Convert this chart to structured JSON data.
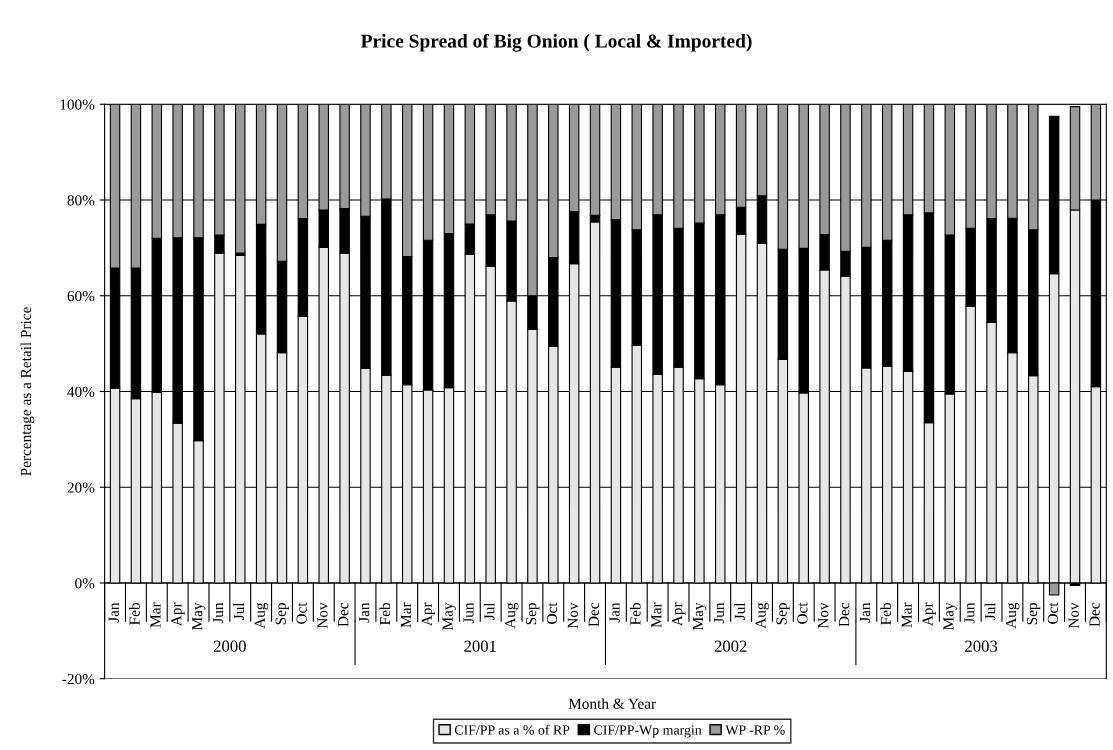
{
  "chart_data": {
    "type": "bar",
    "stacked": true,
    "title": "Price Spread of Big Onion ( Local & Imported)",
    "xlabel": "Month & Year",
    "ylabel": "Percentage as a Retail Price",
    "categories": [
      "Jan",
      "Feb",
      "Mar",
      "Apr",
      "May",
      "Jun",
      "Jul",
      "Aug",
      "Sep",
      "Oct",
      "Nov",
      "Dec",
      "Jan",
      "Feb",
      "Mar",
      "Apr",
      "May",
      "Jun",
      "Jul",
      "Aug",
      "Sep",
      "Oct",
      "Nov",
      "Dec",
      "Jan",
      "Feb",
      "Mar",
      "Apr",
      "May",
      "Jun",
      "Jul",
      "Aug",
      "Sep",
      "Oct",
      "Nov",
      "Dec",
      "Jan",
      "Feb",
      "Mar",
      "Apr",
      "May",
      "Jun",
      "Jul",
      "Aug",
      "Sep",
      "Oct",
      "Nov",
      "Dec"
    ],
    "series": [
      {
        "name": "CIF/PP as a % of RP",
        "color": "#e6e6e6",
        "values": [
          40.7,
          38.5,
          39.8,
          33.4,
          29.7,
          68.9,
          68.4,
          52.0,
          48.1,
          55.7,
          70.1,
          68.9,
          44.8,
          43.4,
          41.4,
          40.3,
          40.8,
          68.7,
          66.1,
          58.9,
          53.0,
          49.4,
          66.7,
          75.4,
          45.1,
          49.6,
          43.6,
          45.1,
          42.7,
          41.4,
          72.8,
          70.9,
          46.7,
          39.7,
          65.4,
          64.1,
          44.9,
          45.3,
          44.2,
          33.5,
          39.5,
          57.8,
          54.4,
          48.1,
          43.3,
          64.6,
          77.9,
          41.0
        ]
      },
      {
        "name": "CIF/PP-Wp margin",
        "color": "#000000",
        "values": [
          25.1,
          27.3,
          32.2,
          38.7,
          42.4,
          3.8,
          0.5,
          22.9,
          19.1,
          20.4,
          7.8,
          9.3,
          31.8,
          36.8,
          26.8,
          31.3,
          32.2,
          6.3,
          10.8,
          16.7,
          7.0,
          18.6,
          10.9,
          1.4,
          30.8,
          24.2,
          33.3,
          29.0,
          32.5,
          35.5,
          5.7,
          10.0,
          23.0,
          30.2,
          7.4,
          5.2,
          25.2,
          26.3,
          32.7,
          43.8,
          33.2,
          16.3,
          21.7,
          28.1,
          30.5,
          32.9,
          -0.5,
          39.0
        ]
      },
      {
        "name": "WP -RP %",
        "color": "#9a9a9a",
        "values": [
          34.2,
          34.2,
          28.0,
          27.9,
          27.9,
          27.3,
          31.1,
          25.1,
          32.8,
          23.9,
          22.1,
          21.8,
          23.4,
          19.8,
          31.8,
          28.4,
          27.0,
          25.0,
          23.1,
          24.4,
          40.0,
          32.0,
          22.4,
          23.2,
          24.1,
          26.2,
          23.1,
          25.9,
          24.8,
          23.1,
          21.5,
          19.1,
          30.3,
          30.1,
          27.2,
          30.7,
          29.9,
          28.4,
          23.1,
          22.7,
          27.3,
          25.9,
          23.9,
          23.8,
          26.2,
          -2.5,
          21.6,
          20.0
        ]
      }
    ],
    "annotations": [
      "2000",
      "2001",
      "2002",
      "2003"
    ],
    "ylim": [
      -20,
      100
    ],
    "yticks": [
      {
        "value": -20,
        "label": "-20%"
      },
      {
        "value": 0,
        "label": "0%"
      },
      {
        "value": 20,
        "label": "20%"
      },
      {
        "value": 40,
        "label": "40%"
      },
      {
        "value": 60,
        "label": "60%"
      },
      {
        "value": 80,
        "label": "80%"
      },
      {
        "value": 100,
        "label": "100%"
      }
    ],
    "grid": "y",
    "legend": "bottom"
  }
}
